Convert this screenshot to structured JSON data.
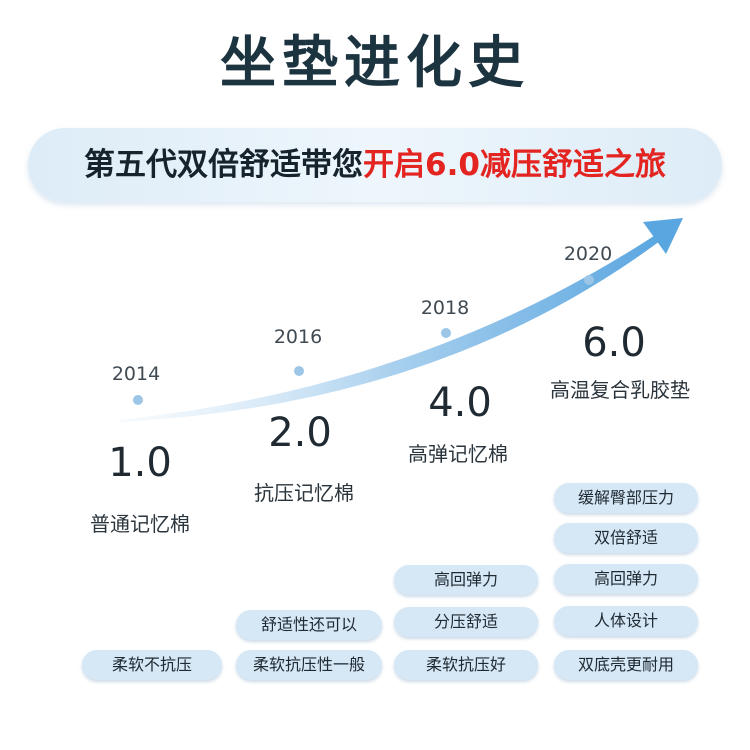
{
  "title": "坐垫进化史",
  "banner": {
    "black": "第五代双倍舒适带您",
    "red": "开启6.0减压舒适之旅"
  },
  "stages": [
    {
      "year": "2014",
      "version": "1.0",
      "name": "普通记忆棉",
      "features": [
        "柔软不抗压"
      ]
    },
    {
      "year": "2016",
      "version": "2.0",
      "name": "抗压记忆棉",
      "features": [
        "舒适性还可以",
        "柔软抗压性一般"
      ]
    },
    {
      "year": "2018",
      "version": "4.0",
      "name": "高弹记忆棉",
      "features": [
        "高回弹力",
        "分压舒适",
        "柔软抗压好"
      ]
    },
    {
      "year": "2020",
      "version": "6.0",
      "name": "高温复合乳胶垫",
      "features": [
        "缓解臀部压力",
        "双倍舒适",
        "高回弹力",
        "人体设计",
        "双底壳更耐用"
      ]
    }
  ],
  "colors": {
    "accent_red": "#e32420",
    "pill_bg": "#d6e7f5",
    "arrow_blue": "#6aaee0"
  },
  "icons": {
    "arrow": "growth-arrow-icon"
  }
}
